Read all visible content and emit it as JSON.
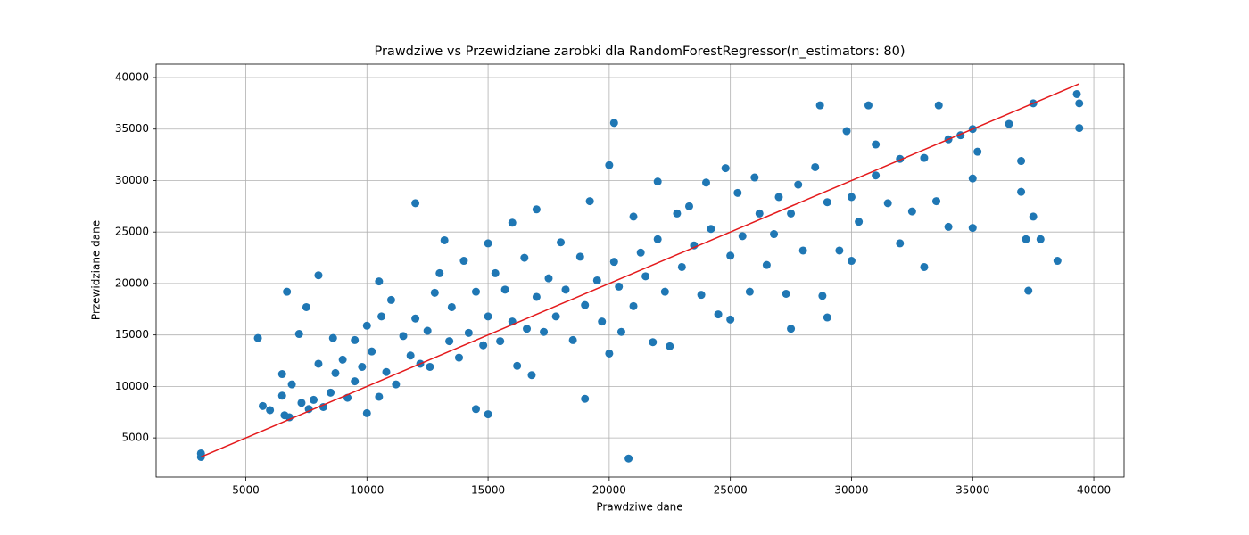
{
  "chart_data": {
    "type": "scatter",
    "title": "Prawdziwe vs Przewidziane zarobki dla RandomForestRegressor(n_estimators: 80)",
    "x_label": "Prawdziwe dane",
    "y_label": "Przewidziane dane",
    "xlim": [
      1300,
      41250
    ],
    "ylim": [
      1200,
      41300
    ],
    "xticks": [
      5000,
      10000,
      15000,
      20000,
      25000,
      30000,
      35000,
      40000
    ],
    "yticks": [
      5000,
      10000,
      15000,
      20000,
      25000,
      30000,
      35000,
      40000
    ],
    "grid": true,
    "series": [
      {
        "type": "scatter",
        "color": "#1f77b4",
        "x": [
          3150,
          3150,
          5500,
          5700,
          6000,
          6500,
          6500,
          6600,
          6700,
          6800,
          6900,
          7200,
          7300,
          7500,
          7600,
          7800,
          8000,
          8000,
          8200,
          8500,
          8600,
          8700,
          9000,
          9200,
          9500,
          9500,
          9800,
          10000,
          10000,
          10200,
          10500,
          10500,
          10600,
          10800,
          11000,
          11200,
          11500,
          11800,
          12000,
          12000,
          12200,
          12500,
          12600,
          12800,
          13000,
          13200,
          13400,
          13500,
          13800,
          14000,
          14200,
          14500,
          14500,
          14800,
          15000,
          15000,
          15000,
          15300,
          15500,
          15700,
          16000,
          16000,
          16200,
          16500,
          16600,
          16800,
          17000,
          17000,
          17300,
          17500,
          17800,
          18000,
          18200,
          18500,
          18800,
          19000,
          19000,
          19200,
          19500,
          19700,
          20000,
          20000,
          20200,
          20200,
          20400,
          20500,
          20800,
          21000,
          21000,
          21300,
          21500,
          21800,
          22000,
          22000,
          22300,
          22500,
          22800,
          23000,
          23300,
          23500,
          23800,
          24000,
          24200,
          24500,
          24800,
          25000,
          25000,
          25300,
          25500,
          25800,
          26000,
          26200,
          26500,
          26800,
          27000,
          27300,
          27500,
          27500,
          27800,
          28000,
          28500,
          28700,
          28800,
          29000,
          29000,
          29500,
          29800,
          30000,
          30000,
          30300,
          30700,
          31000,
          31000,
          31500,
          32000,
          32000,
          32500,
          33000,
          33000,
          33500,
          33600,
          34000,
          34000,
          34500,
          35000,
          35000,
          35000,
          35200,
          36500,
          37000,
          37000,
          37200,
          37300,
          37500,
          37500,
          37800,
          38500,
          39300,
          39400,
          39400
        ],
        "values": [
          3150,
          3500,
          14700,
          8100,
          7700,
          11200,
          9100,
          7200,
          19200,
          7000,
          10200,
          15100,
          8400,
          17700,
          7800,
          8700,
          20800,
          12200,
          8000,
          9400,
          14700,
          11300,
          12600,
          8900,
          14500,
          10500,
          11900,
          15900,
          7400,
          13400,
          20200,
          9000,
          16800,
          11400,
          18400,
          10200,
          14900,
          13000,
          27800,
          16600,
          12200,
          15400,
          11900,
          19100,
          21000,
          24200,
          14400,
          17700,
          12800,
          22200,
          15200,
          7800,
          19200,
          14000,
          7300,
          23900,
          16800,
          21000,
          14400,
          19400,
          16300,
          25900,
          12000,
          22500,
          15600,
          11100,
          18700,
          27200,
          15300,
          20500,
          16800,
          24000,
          19400,
          14500,
          22600,
          8800,
          17900,
          28000,
          20300,
          16300,
          31500,
          13200,
          35600,
          22100,
          19700,
          15300,
          3000,
          26500,
          17800,
          23000,
          20700,
          14300,
          29900,
          24300,
          19200,
          13900,
          26800,
          21600,
          27500,
          23700,
          18900,
          29800,
          25300,
          17000,
          31200,
          22700,
          16500,
          28800,
          24600,
          19200,
          30300,
          26800,
          21800,
          24800,
          28400,
          19000,
          15600,
          26800,
          29600,
          23200,
          31300,
          37300,
          18800,
          16700,
          27900,
          23200,
          34800,
          22200,
          28400,
          26000,
          37300,
          33500,
          30500,
          27800,
          23900,
          32100,
          27000,
          21600,
          32200,
          28000,
          37300,
          34000,
          25500,
          34400,
          35000,
          25400,
          30200,
          32800,
          35500,
          31900,
          28900,
          24300,
          19300,
          37500,
          26500,
          24300,
          22200,
          38400,
          35100,
          37500
        ]
      },
      {
        "type": "line",
        "color": "#e41a1c",
        "x": [
          3150,
          39400
        ],
        "values": [
          3150,
          39400
        ]
      }
    ]
  }
}
